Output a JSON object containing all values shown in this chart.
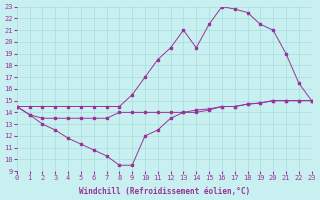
{
  "xlabel": "Windchill (Refroidissement éolien,°C)",
  "background_color": "#c8f0f0",
  "grid_color": "#aadddd",
  "line_color": "#993399",
  "xlim": [
    0,
    23
  ],
  "ylim": [
    9,
    23
  ],
  "xticks": [
    0,
    1,
    2,
    3,
    4,
    5,
    6,
    7,
    8,
    9,
    10,
    11,
    12,
    13,
    14,
    15,
    16,
    17,
    18,
    19,
    20,
    21,
    22,
    23
  ],
  "yticks": [
    9,
    10,
    11,
    12,
    13,
    14,
    15,
    16,
    17,
    18,
    19,
    20,
    21,
    22,
    23
  ],
  "line1_x": [
    0,
    1,
    2,
    3,
    4,
    5,
    6,
    7,
    8,
    9,
    10,
    11,
    12,
    13,
    14,
    15,
    16,
    17,
    18,
    19,
    20,
    21,
    22,
    23
  ],
  "line1_y": [
    14.5,
    13.8,
    13.5,
    13.5,
    13.5,
    13.5,
    13.5,
    13.5,
    14.0,
    14.0,
    14.0,
    14.0,
    14.0,
    14.0,
    14.2,
    14.3,
    14.5,
    14.5,
    14.7,
    14.8,
    15.0,
    15.0,
    15.0,
    15.0
  ],
  "line2_x": [
    0,
    1,
    2,
    3,
    4,
    5,
    6,
    7,
    8,
    9,
    10,
    11,
    12,
    13,
    14,
    15,
    16,
    17,
    18,
    19,
    20,
    21,
    22,
    23
  ],
  "line2_y": [
    14.5,
    13.8,
    13.0,
    12.5,
    11.8,
    11.3,
    10.8,
    10.3,
    9.5,
    9.5,
    12.0,
    12.5,
    13.5,
    14.0,
    14.0,
    14.2,
    14.5,
    14.5,
    14.7,
    14.8,
    15.0,
    15.0,
    15.0,
    15.0
  ],
  "line3_x": [
    0,
    1,
    2,
    3,
    4,
    5,
    6,
    7,
    8,
    9,
    10,
    11,
    12,
    13,
    14,
    15,
    16,
    17,
    18,
    19,
    20,
    21,
    22,
    23
  ],
  "line3_y": [
    14.5,
    14.5,
    14.5,
    14.5,
    14.5,
    14.5,
    14.5,
    14.5,
    14.5,
    15.5,
    17.0,
    18.5,
    19.5,
    21.0,
    19.5,
    21.5,
    23.0,
    22.8,
    22.5,
    21.5,
    21.0,
    19.0,
    16.5,
    15.0
  ]
}
